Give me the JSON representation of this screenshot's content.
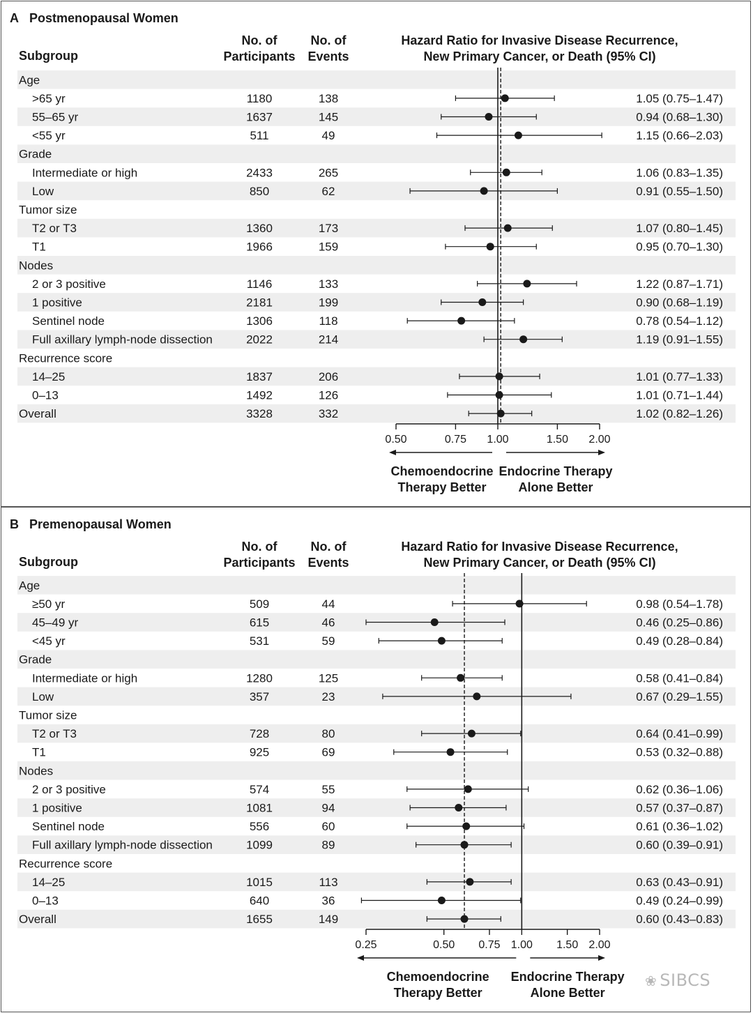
{
  "watermark": "SIBCS",
  "colors": {
    "stripe": "#eeeeee",
    "ink": "#1a1a1a",
    "border": "#555555"
  },
  "chart_data": [
    {
      "type": "forest",
      "panel_letter": "A",
      "title": "Postmenopausal Women",
      "headers": {
        "subgroup": "Subgroup",
        "participants": [
          "No. of",
          "Participants"
        ],
        "events": [
          "No. of",
          "Events"
        ],
        "hr": [
          "Hazard Ratio for Invasive Disease Recurrence,",
          "New Primary Cancer, or Death (95% CI)"
        ]
      },
      "scale": "log",
      "xlim": [
        0.5,
        2.0
      ],
      "ticks": [
        0.5,
        0.75,
        1.0,
        1.5,
        2.0
      ],
      "tick_labels": [
        "0.50",
        "0.75",
        "1.00",
        "1.50",
        "2.00"
      ],
      "reference_line": 1.0,
      "overall_line": 1.02,
      "left_label": [
        "Chemoendocrine",
        "Therapy Better"
      ],
      "right_label": [
        "Endocrine Therapy",
        "Alone Better"
      ],
      "rows": [
        {
          "label": "Age",
          "header": true
        },
        {
          "label": ">65 yr",
          "n": "1180",
          "events": "138",
          "hr": 1.05,
          "lo": 0.75,
          "hi": 1.47,
          "text": "1.05 (0.75–1.47)"
        },
        {
          "label": "55–65 yr",
          "n": "1637",
          "events": "145",
          "hr": 0.94,
          "lo": 0.68,
          "hi": 1.3,
          "text": "0.94 (0.68–1.30)"
        },
        {
          "label": "<55 yr",
          "n": "511",
          "events": "49",
          "hr": 1.15,
          "lo": 0.66,
          "hi": 2.03,
          "text": "1.15 (0.66–2.03)"
        },
        {
          "label": "Grade",
          "header": true
        },
        {
          "label": "Intermediate or high",
          "n": "2433",
          "events": "265",
          "hr": 1.06,
          "lo": 0.83,
          "hi": 1.35,
          "text": "1.06 (0.83–1.35)"
        },
        {
          "label": "Low",
          "n": "850",
          "events": "62",
          "hr": 0.91,
          "lo": 0.55,
          "hi": 1.5,
          "text": "0.91 (0.55–1.50)"
        },
        {
          "label": "Tumor size",
          "header": true
        },
        {
          "label": "T2 or T3",
          "n": "1360",
          "events": "173",
          "hr": 1.07,
          "lo": 0.8,
          "hi": 1.45,
          "text": "1.07 (0.80–1.45)"
        },
        {
          "label": "T1",
          "n": "1966",
          "events": "159",
          "hr": 0.95,
          "lo": 0.7,
          "hi": 1.3,
          "text": "0.95 (0.70–1.30)"
        },
        {
          "label": "Nodes",
          "header": true
        },
        {
          "label": "2 or 3 positive",
          "n": "1146",
          "events": "133",
          "hr": 1.22,
          "lo": 0.87,
          "hi": 1.71,
          "text": "1.22 (0.87–1.71)"
        },
        {
          "label": "1 positive",
          "n": "2181",
          "events": "199",
          "hr": 0.9,
          "lo": 0.68,
          "hi": 1.19,
          "text": "0.90 (0.68–1.19)"
        },
        {
          "label": "Sentinel node",
          "n": "1306",
          "events": "118",
          "hr": 0.78,
          "lo": 0.54,
          "hi": 1.12,
          "text": "0.78 (0.54–1.12)"
        },
        {
          "label": "Full axillary lymph-node dissection",
          "n": "2022",
          "events": "214",
          "hr": 1.19,
          "lo": 0.91,
          "hi": 1.55,
          "text": "1.19 (0.91–1.55)"
        },
        {
          "label": "Recurrence score",
          "header": true
        },
        {
          "label": "14–25",
          "n": "1837",
          "events": "206",
          "hr": 1.01,
          "lo": 0.77,
          "hi": 1.33,
          "text": "1.01 (0.77–1.33)"
        },
        {
          "label": "0–13",
          "n": "1492",
          "events": "126",
          "hr": 1.01,
          "lo": 0.71,
          "hi": 1.44,
          "text": "1.01 (0.71–1.44)"
        },
        {
          "label": "Overall",
          "n": "3328",
          "events": "332",
          "hr": 1.02,
          "lo": 0.82,
          "hi": 1.26,
          "text": "1.02 (0.82–1.26)",
          "overall": true
        }
      ]
    },
    {
      "type": "forest",
      "panel_letter": "B",
      "title": "Premenopausal Women",
      "headers": {
        "subgroup": "Subgroup",
        "participants": [
          "No. of",
          "Participants"
        ],
        "events": [
          "No. of",
          "Events"
        ],
        "hr": [
          "Hazard Ratio for Invasive Disease Recurrence,",
          "New Primary Cancer, or Death (95% CI)"
        ]
      },
      "scale": "log",
      "xlim": [
        0.25,
        2.0
      ],
      "ticks": [
        0.25,
        0.5,
        0.75,
        1.0,
        1.5,
        2.0
      ],
      "tick_labels": [
        "0.25",
        "0.50",
        "0.75",
        "1.00",
        "1.50",
        "2.00"
      ],
      "reference_line": 1.0,
      "overall_line": 0.6,
      "left_label": [
        "Chemoendocrine",
        "Therapy Better"
      ],
      "right_label": [
        "Endocrine Therapy",
        "Alone Better"
      ],
      "rows": [
        {
          "label": "Age",
          "header": true
        },
        {
          "label": "≥50 yr",
          "n": "509",
          "events": "44",
          "hr": 0.98,
          "lo": 0.54,
          "hi": 1.78,
          "text": "0.98 (0.54–1.78)"
        },
        {
          "label": "45–49 yr",
          "n": "615",
          "events": "46",
          "hr": 0.46,
          "lo": 0.25,
          "hi": 0.86,
          "text": "0.46 (0.25–0.86)"
        },
        {
          "label": "<45 yr",
          "n": "531",
          "events": "59",
          "hr": 0.49,
          "lo": 0.28,
          "hi": 0.84,
          "text": "0.49 (0.28–0.84)"
        },
        {
          "label": "Grade",
          "header": true
        },
        {
          "label": "Intermediate or high",
          "n": "1280",
          "events": "125",
          "hr": 0.58,
          "lo": 0.41,
          "hi": 0.84,
          "text": "0.58 (0.41–0.84)"
        },
        {
          "label": "Low",
          "n": "357",
          "events": "23",
          "hr": 0.67,
          "lo": 0.29,
          "hi": 1.55,
          "text": "0.67 (0.29–1.55)"
        },
        {
          "label": "Tumor size",
          "header": true
        },
        {
          "label": "T2 or T3",
          "n": "728",
          "events": "80",
          "hr": 0.64,
          "lo": 0.41,
          "hi": 0.99,
          "text": "0.64 (0.41–0.99)"
        },
        {
          "label": "T1",
          "n": "925",
          "events": "69",
          "hr": 0.53,
          "lo": 0.32,
          "hi": 0.88,
          "text": "0.53 (0.32–0.88)"
        },
        {
          "label": "Nodes",
          "header": true
        },
        {
          "label": "2 or 3 positive",
          "n": "574",
          "events": "55",
          "hr": 0.62,
          "lo": 0.36,
          "hi": 1.06,
          "text": "0.62 (0.36–1.06)"
        },
        {
          "label": "1 positive",
          "n": "1081",
          "events": "94",
          "hr": 0.57,
          "lo": 0.37,
          "hi": 0.87,
          "text": "0.57 (0.37–0.87)"
        },
        {
          "label": "Sentinel node",
          "n": "556",
          "events": "60",
          "hr": 0.61,
          "lo": 0.36,
          "hi": 1.02,
          "text": "0.61 (0.36–1.02)"
        },
        {
          "label": "Full axillary lymph-node dissection",
          "n": "1099",
          "events": "89",
          "hr": 0.6,
          "lo": 0.39,
          "hi": 0.91,
          "text": "0.60 (0.39–0.91)"
        },
        {
          "label": "Recurrence score",
          "header": true
        },
        {
          "label": "14–25",
          "n": "1015",
          "events": "113",
          "hr": 0.63,
          "lo": 0.43,
          "hi": 0.91,
          "text": "0.63 (0.43–0.91)"
        },
        {
          "label": "0–13",
          "n": "640",
          "events": "36",
          "hr": 0.49,
          "lo": 0.24,
          "hi": 0.99,
          "text": "0.49 (0.24–0.99)"
        },
        {
          "label": "Overall",
          "n": "1655",
          "events": "149",
          "hr": 0.6,
          "lo": 0.43,
          "hi": 0.83,
          "text": "0.60 (0.43–0.83)",
          "overall": true
        }
      ]
    }
  ]
}
